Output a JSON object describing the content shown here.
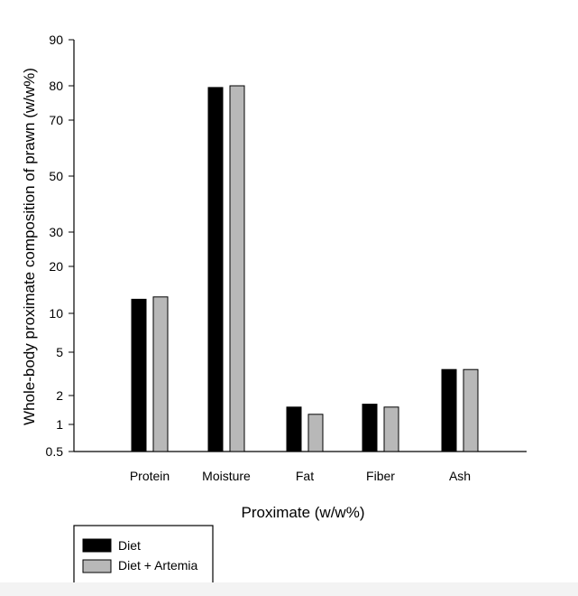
{
  "chart_data": {
    "type": "bar",
    "title": "",
    "xlabel": "Proximate (w/w%)",
    "ylabel": "Whole-body proximate composition of prawn (w/w%)",
    "categories": [
      "Protein",
      "Moisture",
      "Fat",
      "Fiber",
      "Ash"
    ],
    "series": [
      {
        "name": "Diet",
        "color": "#000000",
        "values": [
          13.0,
          79.5,
          1.6,
          1.7,
          3.8
        ]
      },
      {
        "name": "Diet + Artemia",
        "color": "#b8b8b8",
        "values": [
          13.5,
          80.0,
          1.35,
          1.6,
          3.8
        ]
      }
    ],
    "yscale": "piecewise",
    "ylim": [
      0.5,
      90
    ],
    "yticks": [
      0.5,
      1,
      2,
      5,
      10,
      20,
      30,
      50,
      70,
      80,
      90
    ],
    "ytick_labels": [
      "0.5",
      "1",
      "2",
      "5",
      "10",
      "20",
      "30",
      "50",
      "70",
      "80",
      "90"
    ],
    "grid": false,
    "legend": {
      "position": "bottom-left",
      "entries": [
        "Diet",
        "Diet + Artemia"
      ]
    }
  }
}
